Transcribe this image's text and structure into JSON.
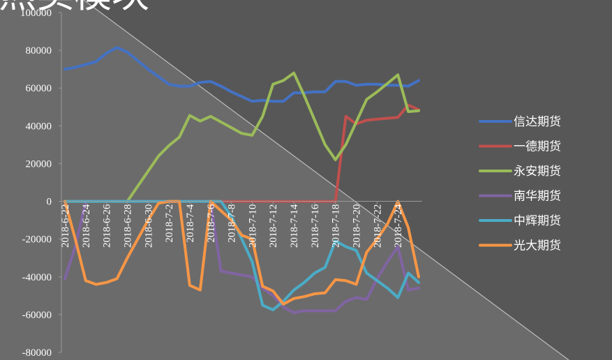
{
  "title": "热卖模块",
  "chart_data": {
    "type": "line",
    "ylim": [
      -80000,
      100000
    ],
    "yticks": [
      "100000",
      "80000",
      "60000",
      "40000",
      "20000",
      "0",
      "-20000",
      "-40000",
      "-60000",
      "-80000"
    ],
    "xticks": [
      "2018-6-22",
      "2018-6-24",
      "2018-6-26",
      "2018-6-28",
      "2018-6-30",
      "2018-7-2",
      "2018-7-4",
      "2018-7-6",
      "2018-7-8",
      "2018-7-10",
      "2018-7-12",
      "2018-7-14",
      "2018-7-16",
      "2018-7-18",
      "2018-7-20",
      "2018-7-22",
      "2018-7-24"
    ],
    "legend_position": "right",
    "series": [
      {
        "name": "信达期货",
        "color": "#4472C4",
        "values": [
          [
            0,
            70000
          ],
          [
            1,
            71000
          ],
          [
            2,
            72500
          ],
          [
            3,
            74000
          ],
          [
            4,
            78500
          ],
          [
            5,
            81500
          ],
          [
            6,
            79000
          ],
          [
            7,
            74500
          ],
          [
            8,
            70000
          ],
          [
            9,
            66000
          ],
          [
            10,
            62000
          ],
          [
            11,
            61000
          ],
          [
            12,
            61000
          ],
          [
            13,
            63000
          ],
          [
            14,
            63500
          ],
          [
            15,
            61000
          ],
          [
            16,
            58000
          ],
          [
            17,
            55500
          ],
          [
            18,
            53000
          ],
          [
            19,
            53500
          ],
          [
            20,
            53000
          ],
          [
            21,
            53000
          ],
          [
            22,
            57500
          ],
          [
            23,
            57500
          ],
          [
            24,
            58000
          ],
          [
            25,
            58000
          ],
          [
            26,
            63500
          ],
          [
            27,
            63500
          ],
          [
            28,
            61500
          ],
          [
            29,
            62000
          ],
          [
            30,
            62000
          ],
          [
            31,
            61500
          ],
          [
            32,
            61500
          ],
          [
            33,
            61000
          ],
          [
            34,
            64000
          ]
        ]
      },
      {
        "name": "一德期货",
        "color": "#C0504D",
        "values": [
          [
            0,
            0
          ],
          [
            1,
            0
          ],
          [
            2,
            0
          ],
          [
            3,
            0
          ],
          [
            4,
            0
          ],
          [
            5,
            0
          ],
          [
            6,
            0
          ],
          [
            7,
            0
          ],
          [
            8,
            0
          ],
          [
            9,
            0
          ],
          [
            10,
            0
          ],
          [
            11,
            0
          ],
          [
            12,
            0
          ],
          [
            13,
            0
          ],
          [
            14,
            0
          ],
          [
            15,
            0
          ],
          [
            16,
            0
          ],
          [
            17,
            0
          ],
          [
            18,
            0
          ],
          [
            19,
            0
          ],
          [
            20,
            0
          ],
          [
            21,
            0
          ],
          [
            22,
            0
          ],
          [
            23,
            0
          ],
          [
            24,
            0
          ],
          [
            25,
            0
          ],
          [
            26,
            0
          ],
          [
            27,
            45000
          ],
          [
            28,
            41000
          ],
          [
            29,
            43000
          ],
          [
            30,
            43500
          ],
          [
            31,
            44000
          ],
          [
            32,
            44500
          ],
          [
            33,
            51000
          ],
          [
            34,
            48500
          ]
        ]
      },
      {
        "name": "永安期货",
        "color": "#9BBB59",
        "values": [
          [
            0,
            0
          ],
          [
            1,
            0
          ],
          [
            2,
            0
          ],
          [
            3,
            0
          ],
          [
            4,
            0
          ],
          [
            5,
            0
          ],
          [
            6,
            0
          ],
          [
            7,
            8000
          ],
          [
            8,
            16000
          ],
          [
            9,
            24000
          ],
          [
            10,
            29500
          ],
          [
            11,
            34000
          ],
          [
            12,
            45500
          ],
          [
            13,
            42500
          ],
          [
            14,
            45000
          ],
          [
            15,
            42000
          ],
          [
            16,
            39000
          ],
          [
            17,
            36000
          ],
          [
            18,
            35000
          ],
          [
            19,
            45000
          ],
          [
            20,
            62000
          ],
          [
            21,
            64000
          ],
          [
            22,
            68000
          ],
          [
            23,
            56000
          ],
          [
            24,
            43000
          ],
          [
            25,
            30000
          ],
          [
            26,
            22000
          ],
          [
            27,
            30000
          ],
          [
            28,
            42000
          ],
          [
            29,
            54000
          ],
          [
            30,
            58000
          ],
          [
            31,
            62500
          ],
          [
            32,
            67000
          ],
          [
            33,
            47500
          ],
          [
            34,
            48000
          ]
        ]
      },
      {
        "name": "南华期货",
        "color": "#8064A2",
        "values": [
          [
            0,
            -41000
          ],
          [
            1,
            -24000
          ],
          [
            2,
            0
          ],
          [
            3,
            0
          ],
          [
            4,
            0
          ],
          [
            5,
            0
          ],
          [
            6,
            0
          ],
          [
            7,
            0
          ],
          [
            8,
            0
          ],
          [
            9,
            0
          ],
          [
            10,
            0
          ],
          [
            11,
            0
          ],
          [
            12,
            0
          ],
          [
            13,
            0
          ],
          [
            14,
            0
          ],
          [
            15,
            -37000
          ],
          [
            16,
            -38000
          ],
          [
            17,
            -39000
          ],
          [
            18,
            -40000
          ],
          [
            19,
            -46000
          ],
          [
            20,
            -50000
          ],
          [
            21,
            -56000
          ],
          [
            22,
            -59000
          ],
          [
            23,
            -58000
          ],
          [
            24,
            -58000
          ],
          [
            25,
            -58000
          ],
          [
            26,
            -58000
          ],
          [
            27,
            -53000
          ],
          [
            28,
            -51000
          ],
          [
            29,
            -52000
          ],
          [
            30,
            -41000
          ],
          [
            31,
            -32000
          ],
          [
            32,
            -24000
          ],
          [
            33,
            -47000
          ],
          [
            34,
            -46000
          ]
        ]
      },
      {
        "name": "中辉期货",
        "color": "#4BACC6",
        "values": [
          [
            0,
            0
          ],
          [
            1,
            0
          ],
          [
            2,
            0
          ],
          [
            3,
            0
          ],
          [
            4,
            0
          ],
          [
            5,
            0
          ],
          [
            6,
            0
          ],
          [
            7,
            0
          ],
          [
            8,
            0
          ],
          [
            9,
            0
          ],
          [
            10,
            0
          ],
          [
            11,
            0
          ],
          [
            12,
            0
          ],
          [
            13,
            0
          ],
          [
            14,
            0
          ],
          [
            15,
            0
          ],
          [
            16,
            -8000
          ],
          [
            17,
            -20000
          ],
          [
            18,
            -32000
          ],
          [
            19,
            -55000
          ],
          [
            20,
            -57500
          ],
          [
            21,
            -53000
          ],
          [
            22,
            -47000
          ],
          [
            23,
            -43000
          ],
          [
            24,
            -38000
          ],
          [
            25,
            -35000
          ],
          [
            26,
            -21000
          ],
          [
            27,
            -24000
          ],
          [
            28,
            -26000
          ],
          [
            29,
            -38000
          ],
          [
            30,
            -42000
          ],
          [
            31,
            -46000
          ],
          [
            32,
            -51000
          ],
          [
            33,
            -38000
          ],
          [
            34,
            -43000
          ]
        ]
      },
      {
        "name": "光大期货",
        "color": "#F79646",
        "values": [
          [
            0,
            0
          ],
          [
            1,
            -20000
          ],
          [
            2,
            -42000
          ],
          [
            3,
            -44000
          ],
          [
            4,
            -43000
          ],
          [
            5,
            -41000
          ],
          [
            6,
            -30000
          ],
          [
            7,
            -20000
          ],
          [
            8,
            -10000
          ],
          [
            9,
            -1000
          ],
          [
            10,
            0
          ],
          [
            11,
            0
          ],
          [
            12,
            -44500
          ],
          [
            13,
            -47000
          ],
          [
            14,
            0
          ],
          [
            15,
            -5000
          ],
          [
            16,
            -10000
          ],
          [
            17,
            -18000
          ],
          [
            18,
            -20000
          ],
          [
            19,
            -45000
          ],
          [
            20,
            -47500
          ],
          [
            21,
            -54500
          ],
          [
            22,
            -51500
          ],
          [
            23,
            -50500
          ],
          [
            24,
            -49000
          ],
          [
            25,
            -48500
          ],
          [
            26,
            -41500
          ],
          [
            27,
            -42000
          ],
          [
            28,
            -44000
          ],
          [
            29,
            -27000
          ],
          [
            30,
            -20000
          ],
          [
            31,
            -12000
          ],
          [
            32,
            0
          ],
          [
            33,
            -14000
          ],
          [
            34,
            -40000
          ]
        ]
      }
    ]
  }
}
